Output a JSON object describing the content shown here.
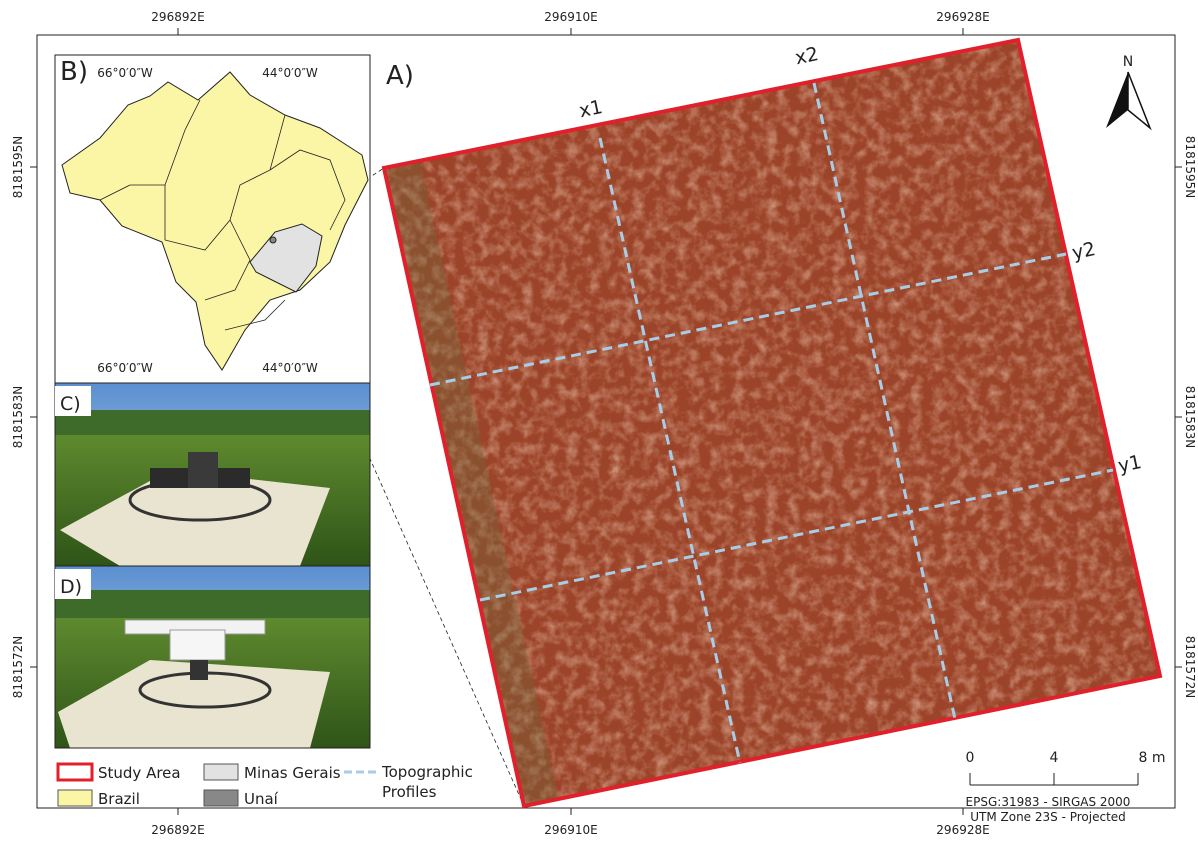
{
  "grid_labels": {
    "eastings": [
      "296892E",
      "296910E",
      "296928E"
    ],
    "northings": [
      "8181595N",
      "8181583N",
      "8181572N"
    ]
  },
  "panels": {
    "a": "A)",
    "b": "B)",
    "c": "C)",
    "d": "D)"
  },
  "inset_labels": {
    "longitudes": [
      "66°0′0″W",
      "44°0′0″W"
    ]
  },
  "profiles": [
    "x1",
    "x2",
    "y1",
    "y2"
  ],
  "north": "N",
  "legend": [
    "Study Area",
    "Brazil",
    "Minas Gerais",
    "Unaí",
    "Topographic Profiles"
  ],
  "scale_bar": {
    "ticks": [
      "0",
      "4",
      "8 m"
    ]
  },
  "crs": [
    "EPSG:31983 - SIRGAS 2000",
    "UTM Zone 23S - Projected"
  ]
}
